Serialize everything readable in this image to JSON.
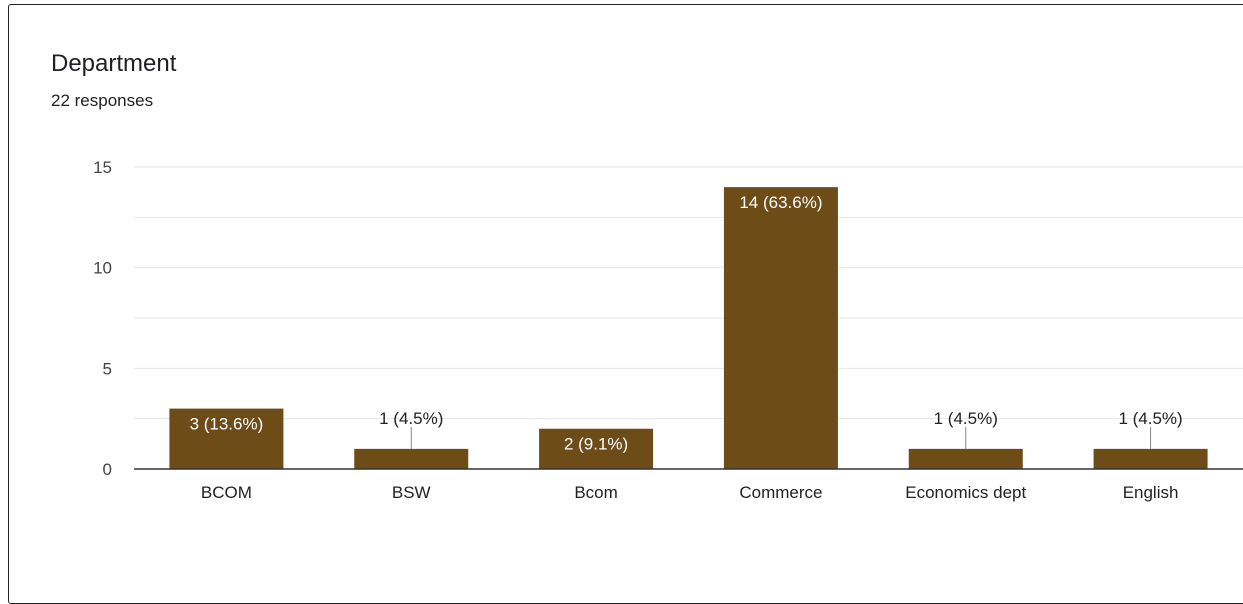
{
  "card": {
    "title": "Department",
    "subtitle": "22 responses"
  },
  "colors": {
    "bar": "#6d4c17",
    "grid": "#e6e6e6",
    "axis": "#333333"
  },
  "chart_data": {
    "type": "bar",
    "categories": [
      "BCOM",
      "BSW",
      "Bcom",
      "Commerce",
      "Economics dept",
      "English"
    ],
    "values": [
      3,
      1,
      2,
      14,
      1,
      1
    ],
    "labels": [
      "3 (13.6%)",
      "1 (4.5%)",
      "2 (9.1%)",
      "14 (63.6%)",
      "1 (4.5%)",
      "1 (4.5%)"
    ],
    "yticks": [
      0,
      5,
      10,
      15
    ],
    "ylim": [
      0,
      15
    ],
    "grid": true
  }
}
